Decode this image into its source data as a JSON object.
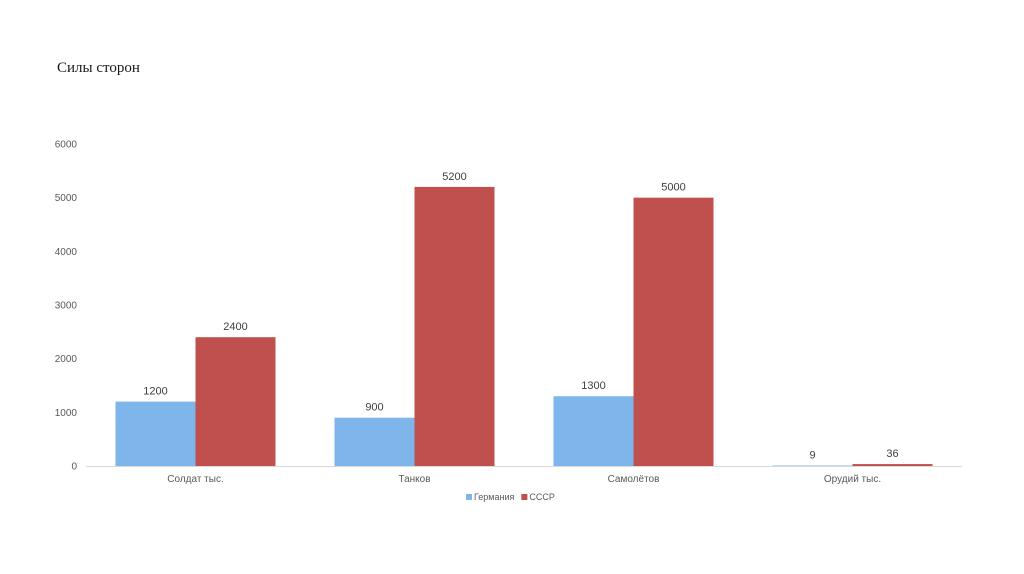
{
  "title": "Силы сторон",
  "chart_data": {
    "type": "bar",
    "categories": [
      "Солдат тыс.",
      "Танков",
      "Самолётов",
      "Орудий тыс."
    ],
    "series": [
      {
        "name": "Германия",
        "values": [
          1200,
          900,
          1300,
          9
        ],
        "color": "#7eb6ec"
      },
      {
        "name": "СССР",
        "values": [
          2400,
          5200,
          5000,
          36
        ],
        "color": "#c0504d"
      }
    ],
    "ylim": [
      0,
      6000
    ],
    "yticks": [
      0,
      1000,
      2000,
      3000,
      4000,
      5000,
      6000
    ],
    "data_labels": true,
    "grid": false,
    "legend_position": "bottom"
  }
}
